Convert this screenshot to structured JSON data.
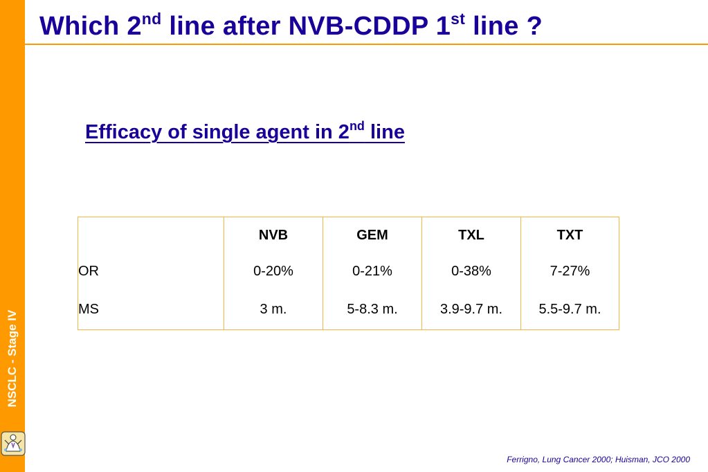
{
  "slide": {
    "title_main": "Which 2",
    "title_sup1": "nd",
    "title_mid": " line after NVB-CDDP 1",
    "title_sup2": "st",
    "title_end": " line ?",
    "subtitle_main": "Efficacy of single agent in 2",
    "subtitle_sup": "nd",
    "subtitle_end": " line",
    "sidebar_label": "NSCLC - Stage IV",
    "footnote": "Ferrigno, Lung Cancer 2000; Huisman, JCO 2000"
  },
  "table": {
    "headers": [
      "",
      "NVB",
      "GEM",
      "TXL",
      "TXT"
    ],
    "rows": [
      {
        "label": "OR",
        "values": [
          "0-20%",
          "0-21%",
          "0-38%",
          "7-27%"
        ]
      },
      {
        "label": "MS",
        "values": [
          "3 m.",
          "5-8.3 m.",
          "3.9-9.7 m.",
          "5.5-9.7 m."
        ]
      }
    ]
  },
  "colors": {
    "accent_orange": "#FF9900",
    "title_blue": "#1A0099",
    "table_border": "#F4B740"
  },
  "icons": {
    "logo": "cartoon-figure-logo-icon"
  }
}
